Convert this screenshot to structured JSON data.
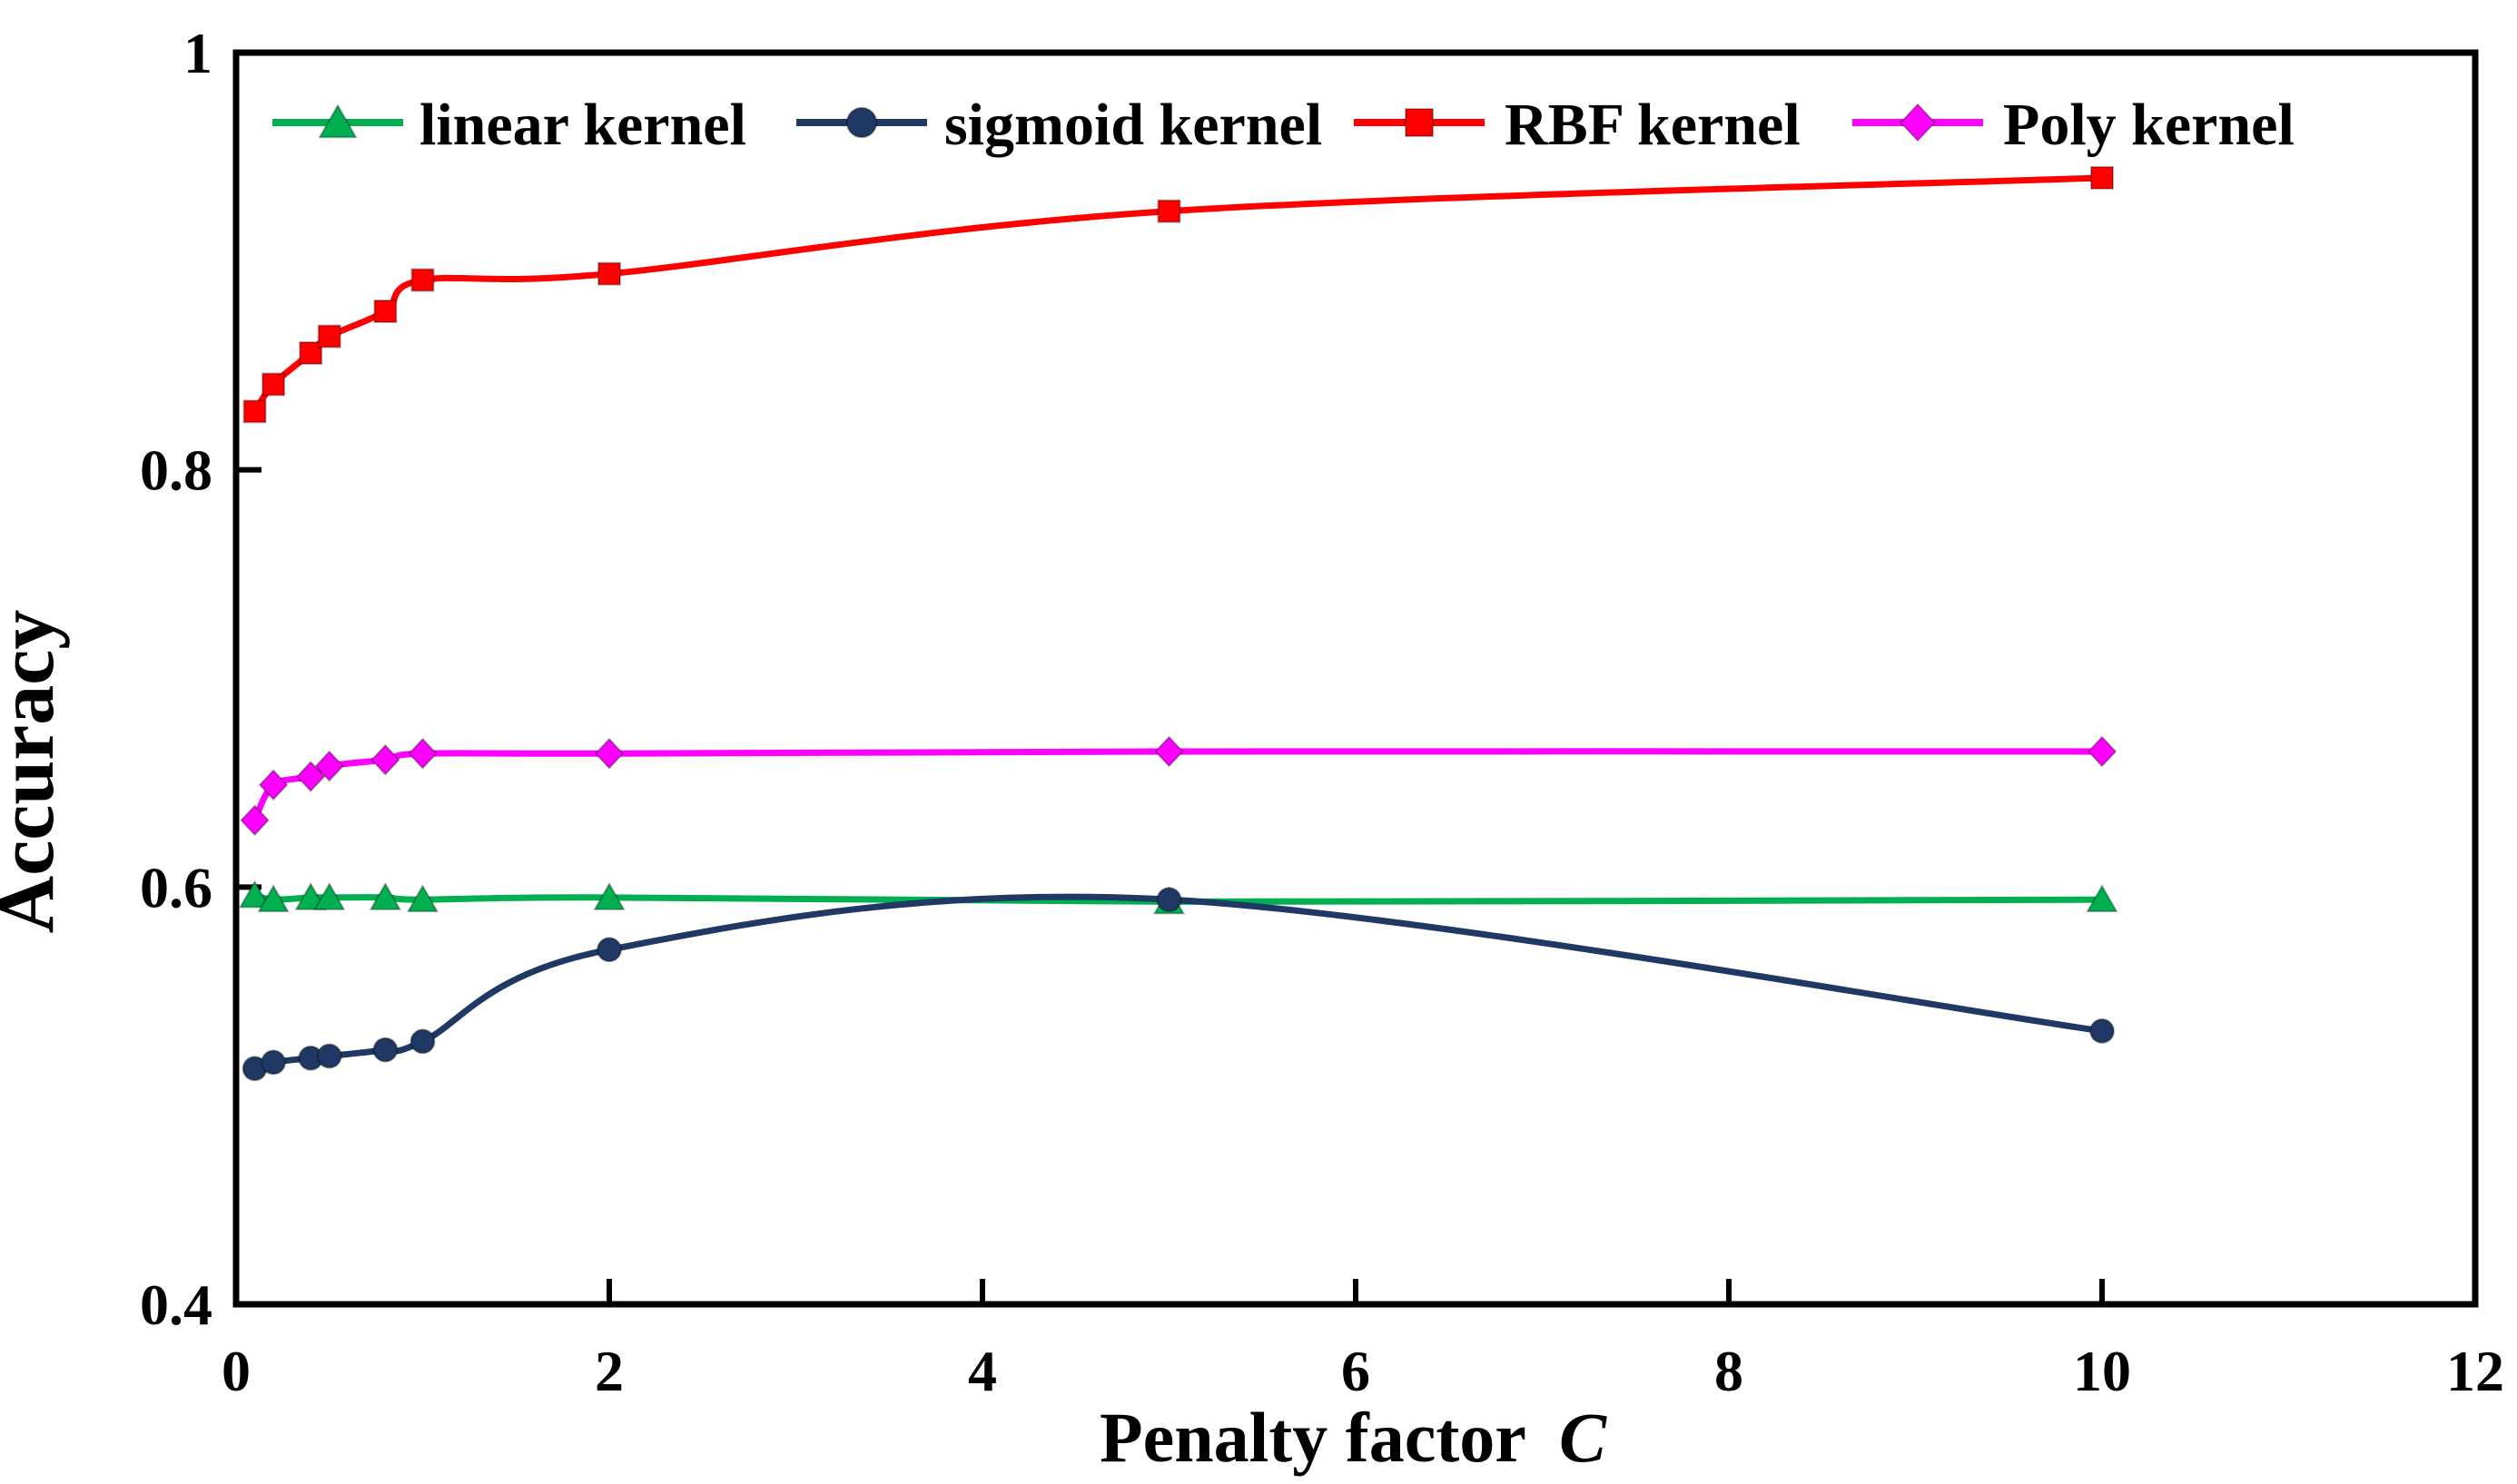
{
  "figure": {
    "background": "#ffffff",
    "axis_color": "#000000"
  },
  "chart_data": {
    "type": "line",
    "title": "",
    "xlabel_text": "Penalty factor",
    "xlabel_italic": "C",
    "ylabel": "Accuracy",
    "xlim": [
      0,
      12
    ],
    "ylim": [
      0.4,
      1.0
    ],
    "grid": false,
    "legend_position": "top-inside-horizontal",
    "x_ticks": [
      0,
      2,
      4,
      6,
      8,
      10,
      12
    ],
    "x_tick_labels": [
      "0",
      "2",
      "4",
      "6",
      "8",
      "10",
      "12"
    ],
    "y_ticks": [
      0.4,
      0.6,
      0.8,
      1.0
    ],
    "y_tick_labels": [
      "0.4",
      "0.6",
      "0.8",
      "1"
    ],
    "x": [
      0.1,
      0.2,
      0.4,
      0.5,
      0.8,
      1,
      2,
      5,
      10
    ],
    "series": [
      {
        "name": "linear kernel",
        "color": "#00B050",
        "marker": "triangle",
        "values": [
          0.596,
          0.594,
          0.595,
          0.595,
          0.595,
          0.594,
          0.595,
          0.593,
          0.594
        ]
      },
      {
        "name": "sigmoid kernel",
        "color": "#1F3864",
        "marker": "circle",
        "values": [
          0.513,
          0.516,
          0.518,
          0.519,
          0.522,
          0.526,
          0.57,
          0.594,
          0.531
        ]
      },
      {
        "name": "RBF kernel",
        "color": "#FF0000",
        "marker": "square",
        "values": [
          0.828,
          0.841,
          0.856,
          0.864,
          0.876,
          0.891,
          0.894,
          0.924,
          0.94
        ]
      },
      {
        "name": "Poly kernel",
        "color": "#FF00FF",
        "marker": "diamond",
        "values": [
          0.632,
          0.649,
          0.653,
          0.658,
          0.661,
          0.664,
          0.664,
          0.665,
          0.665
        ]
      }
    ]
  }
}
